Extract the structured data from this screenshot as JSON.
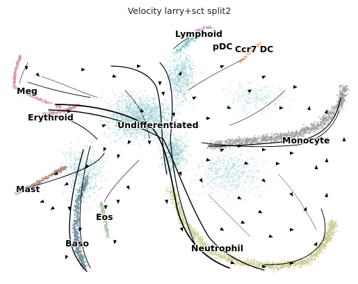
{
  "figure": {
    "title": "Velocity larry+sct split2"
  },
  "clusters": [
    {
      "name": "Lymphoid",
      "color": "#c9a0c4"
    },
    {
      "name": "pDC",
      "color": "#d8a0bc"
    },
    {
      "name": "Ccr7 DC",
      "color": "#f4b48a"
    },
    {
      "name": "Meg",
      "color": "#d891a8"
    },
    {
      "name": "Erythroid",
      "color": "#cf8ca0"
    },
    {
      "name": "Undifferentiated",
      "color": "#8cc5cc"
    },
    {
      "name": "Monocyte",
      "color": "#9a9a9a"
    },
    {
      "name": "Mast",
      "color": "#b08a78"
    },
    {
      "name": "Eos",
      "color": "#a9c4a2"
    },
    {
      "name": "Baso",
      "color": "#6f8ea0"
    },
    {
      "name": "Neutrophil",
      "color": "#c9c98a"
    }
  ]
}
